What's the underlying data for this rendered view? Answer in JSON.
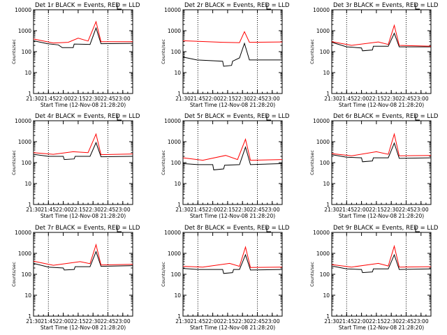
{
  "chart_data": [
    {
      "type": "line",
      "title": "Det 1r BLACK = Events, RED = LLD",
      "xlabel": "Start Time (12-Nov-08 21:28:20)",
      "ylabel": "Counts/sec",
      "yscale": "log",
      "ylim": [
        1,
        10000
      ],
      "xlim": [
        "21:30",
        "23:10"
      ],
      "x_ticks": [
        "21:30",
        "21:45",
        "22:00",
        "22:15",
        "22:30",
        "22:45",
        "23:00"
      ],
      "y_ticks": [
        "1",
        "10",
        "100",
        "1000",
        "10000"
      ],
      "vlines": [
        "21:45",
        "22:45"
      ],
      "series": [
        {
          "name": "Events",
          "color": "#000000",
          "values": [
            {
              "t": "21:30",
              "v": 330
            },
            {
              "t": "21:44",
              "v": 240
            },
            {
              "t": "21:55",
              "v": 210
            },
            {
              "t": "21:59",
              "v": 155
            },
            {
              "t": "22:10",
              "v": 155
            },
            {
              "t": "22:11",
              "v": 230
            },
            {
              "t": "22:27",
              "v": 220
            },
            {
              "t": "22:33",
              "v": 1350
            },
            {
              "t": "22:38",
              "v": 240
            },
            {
              "t": "23:10",
              "v": 250
            }
          ]
        },
        {
          "name": "LLD",
          "color": "#ff0000",
          "values": [
            {
              "t": "21:30",
              "v": 400
            },
            {
              "t": "21:50",
              "v": 260
            },
            {
              "t": "22:05",
              "v": 280
            },
            {
              "t": "22:15",
              "v": 440
            },
            {
              "t": "22:25",
              "v": 320
            },
            {
              "t": "22:33",
              "v": 2700
            },
            {
              "t": "22:38",
              "v": 300
            },
            {
              "t": "23:10",
              "v": 300
            }
          ]
        }
      ]
    },
    {
      "type": "line",
      "title": "Det 2r BLACK = Events, RED = LLD",
      "xlabel": "Start Time (12-Nov-08 21:28:20)",
      "ylabel": "Counts/sec",
      "yscale": "log",
      "ylim": [
        1,
        10000
      ],
      "xlim": [
        "21:30",
        "23:10"
      ],
      "x_ticks": [
        "21:30",
        "21:45",
        "22:00",
        "22:15",
        "22:30",
        "22:45",
        "23:00"
      ],
      "y_ticks": [
        "1",
        "10",
        "100",
        "1000",
        "10000"
      ],
      "vlines": [
        "21:45",
        "22:45"
      ],
      "series": [
        {
          "name": "Events",
          "color": "#000000",
          "values": [
            {
              "t": "21:30",
              "v": 55
            },
            {
              "t": "21:44",
              "v": 40
            },
            {
              "t": "22:10",
              "v": 35
            },
            {
              "t": "22:11",
              "v": 20
            },
            {
              "t": "22:19",
              "v": 22
            },
            {
              "t": "22:20",
              "v": 35
            },
            {
              "t": "22:27",
              "v": 50
            },
            {
              "t": "22:32",
              "v": 250
            },
            {
              "t": "22:37",
              "v": 40
            },
            {
              "t": "23:10",
              "v": 40
            }
          ]
        },
        {
          "name": "LLD",
          "color": "#ff0000",
          "values": [
            {
              "t": "21:30",
              "v": 330
            },
            {
              "t": "22:10",
              "v": 280
            },
            {
              "t": "22:27",
              "v": 270
            },
            {
              "t": "22:32",
              "v": 900
            },
            {
              "t": "22:37",
              "v": 280
            },
            {
              "t": "23:10",
              "v": 290
            }
          ]
        }
      ]
    },
    {
      "type": "line",
      "title": "Det 3r BLACK = Events, RED = LLD",
      "xlabel": "Start Time (12-Nov-08 21:28:20)",
      "ylabel": "Counts/sec",
      "yscale": "log",
      "ylim": [
        1,
        10000
      ],
      "xlim": [
        "21:30",
        "23:10"
      ],
      "x_ticks": [
        "21:30",
        "21:45",
        "22:00",
        "22:15",
        "22:30",
        "22:45",
        "23:00"
      ],
      "y_ticks": [
        "1",
        "10",
        "100",
        "1000",
        "10000"
      ],
      "vlines": [
        "21:45",
        "22:45"
      ],
      "series": [
        {
          "name": "Events",
          "color": "#000000",
          "values": [
            {
              "t": "21:30",
              "v": 280
            },
            {
              "t": "21:45",
              "v": 170
            },
            {
              "t": "22:00",
              "v": 150
            },
            {
              "t": "22:01",
              "v": 110
            },
            {
              "t": "22:11",
              "v": 120
            },
            {
              "t": "22:12",
              "v": 180
            },
            {
              "t": "22:27",
              "v": 180
            },
            {
              "t": "22:33",
              "v": 750
            },
            {
              "t": "22:38",
              "v": 170
            },
            {
              "t": "23:10",
              "v": 170
            }
          ]
        },
        {
          "name": "LLD",
          "color": "#ff0000",
          "values": [
            {
              "t": "21:30",
              "v": 300
            },
            {
              "t": "21:50",
              "v": 200
            },
            {
              "t": "22:17",
              "v": 290
            },
            {
              "t": "22:27",
              "v": 220
            },
            {
              "t": "22:33",
              "v": 1800
            },
            {
              "t": "22:38",
              "v": 200
            },
            {
              "t": "23:10",
              "v": 180
            }
          ]
        }
      ]
    },
    {
      "type": "line",
      "title": "Det 4r BLACK = Events, RED = LLD",
      "xlabel": "Start Time (12-Nov-08 21:28:20)",
      "ylabel": "Counts/sec",
      "yscale": "log",
      "ylim": [
        1,
        10000
      ],
      "xlim": [
        "21:30",
        "23:10"
      ],
      "x_ticks": [
        "21:30",
        "21:45",
        "22:00",
        "22:15",
        "22:30",
        "22:45",
        "23:00"
      ],
      "y_ticks": [
        "1",
        "10",
        "100",
        "1000",
        "10000"
      ],
      "vlines": [
        "21:45",
        "22:45"
      ],
      "series": [
        {
          "name": "Events",
          "color": "#000000",
          "values": [
            {
              "t": "21:30",
              "v": 250
            },
            {
              "t": "21:45",
              "v": 200
            },
            {
              "t": "22:00",
              "v": 200
            },
            {
              "t": "22:01",
              "v": 140
            },
            {
              "t": "22:11",
              "v": 150
            },
            {
              "t": "22:12",
              "v": 200
            },
            {
              "t": "22:27",
              "v": 200
            },
            {
              "t": "22:33",
              "v": 900
            },
            {
              "t": "22:38",
              "v": 190
            },
            {
              "t": "23:10",
              "v": 200
            }
          ]
        },
        {
          "name": "LLD",
          "color": "#ff0000",
          "values": [
            {
              "t": "21:30",
              "v": 300
            },
            {
              "t": "21:50",
              "v": 250
            },
            {
              "t": "22:10",
              "v": 330
            },
            {
              "t": "22:25",
              "v": 300
            },
            {
              "t": "22:33",
              "v": 2300
            },
            {
              "t": "22:38",
              "v": 240
            },
            {
              "t": "23:10",
              "v": 260
            }
          ]
        }
      ]
    },
    {
      "type": "line",
      "title": "Det 5r BLACK = Events, RED = LLD",
      "xlabel": "Start Time (12-Nov-08 21:28:20)",
      "ylabel": "Counts/sec",
      "yscale": "log",
      "ylim": [
        1,
        10000
      ],
      "xlim": [
        "21:30",
        "23:10"
      ],
      "x_ticks": [
        "21:30",
        "21:45",
        "22:00",
        "22:15",
        "22:30",
        "22:45",
        "23:00"
      ],
      "y_ticks": [
        "1",
        "10",
        "100",
        "1000",
        "10000"
      ],
      "vlines": [
        "21:45",
        "22:45"
      ],
      "series": [
        {
          "name": "Events",
          "color": "#000000",
          "values": [
            {
              "t": "21:30",
              "v": 90
            },
            {
              "t": "21:45",
              "v": 80
            },
            {
              "t": "22:00",
              "v": 80
            },
            {
              "t": "22:01",
              "v": 45
            },
            {
              "t": "22:11",
              "v": 50
            },
            {
              "t": "22:12",
              "v": 75
            },
            {
              "t": "22:27",
              "v": 80
            },
            {
              "t": "22:33",
              "v": 550
            },
            {
              "t": "22:38",
              "v": 80
            },
            {
              "t": "23:10",
              "v": 90
            }
          ]
        },
        {
          "name": "LLD",
          "color": "#ff0000",
          "values": [
            {
              "t": "21:30",
              "v": 170
            },
            {
              "t": "21:50",
              "v": 130
            },
            {
              "t": "22:13",
              "v": 220
            },
            {
              "t": "22:25",
              "v": 140
            },
            {
              "t": "22:33",
              "v": 1300
            },
            {
              "t": "22:38",
              "v": 130
            },
            {
              "t": "23:10",
              "v": 140
            }
          ]
        }
      ]
    },
    {
      "type": "line",
      "title": "Det 6r BLACK = Events, RED = LLD",
      "xlabel": "Start Time (12-Nov-08 21:28:20)",
      "ylabel": "Counts/sec",
      "yscale": "log",
      "ylim": [
        1,
        10000
      ],
      "xlim": [
        "21:30",
        "23:10"
      ],
      "x_ticks": [
        "21:30",
        "21:45",
        "22:00",
        "22:15",
        "22:30",
        "22:45",
        "23:00"
      ],
      "y_ticks": [
        "1",
        "10",
        "100",
        "1000",
        "10000"
      ],
      "vlines": [
        "21:45",
        "22:45"
      ],
      "series": [
        {
          "name": "Events",
          "color": "#000000",
          "values": [
            {
              "t": "21:30",
              "v": 240
            },
            {
              "t": "21:45",
              "v": 180
            },
            {
              "t": "22:00",
              "v": 170
            },
            {
              "t": "22:01",
              "v": 110
            },
            {
              "t": "22:11",
              "v": 120
            },
            {
              "t": "22:12",
              "v": 170
            },
            {
              "t": "22:27",
              "v": 170
            },
            {
              "t": "22:33",
              "v": 850
            },
            {
              "t": "22:38",
              "v": 160
            },
            {
              "t": "23:10",
              "v": 170
            }
          ]
        },
        {
          "name": "LLD",
          "color": "#ff0000",
          "values": [
            {
              "t": "21:30",
              "v": 270
            },
            {
              "t": "21:50",
              "v": 210
            },
            {
              "t": "22:15",
              "v": 330
            },
            {
              "t": "22:27",
              "v": 250
            },
            {
              "t": "22:33",
              "v": 2300
            },
            {
              "t": "22:38",
              "v": 210
            },
            {
              "t": "23:10",
              "v": 220
            }
          ]
        }
      ]
    },
    {
      "type": "line",
      "title": "Det 7r BLACK = Events, RED = LLD",
      "xlabel": "Start Time (12-Nov-08 21:28:20)",
      "ylabel": "Counts/sec",
      "yscale": "log",
      "ylim": [
        1,
        10000
      ],
      "xlim": [
        "21:30",
        "23:10"
      ],
      "x_ticks": [
        "21:30",
        "21:45",
        "22:00",
        "22:15",
        "22:30",
        "22:45",
        "23:00"
      ],
      "y_ticks": [
        "1",
        "10",
        "100",
        "1000",
        "10000"
      ],
      "vlines": [
        "21:45",
        "22:45"
      ],
      "series": [
        {
          "name": "Events",
          "color": "#000000",
          "values": [
            {
              "t": "21:30",
              "v": 330
            },
            {
              "t": "21:45",
              "v": 220
            },
            {
              "t": "22:00",
              "v": 200
            },
            {
              "t": "22:01",
              "v": 160
            },
            {
              "t": "22:11",
              "v": 170
            },
            {
              "t": "22:12",
              "v": 230
            },
            {
              "t": "22:27",
              "v": 230
            },
            {
              "t": "22:33",
              "v": 1200
            },
            {
              "t": "22:38",
              "v": 240
            },
            {
              "t": "23:10",
              "v": 260
            }
          ]
        },
        {
          "name": "LLD",
          "color": "#ff0000",
          "values": [
            {
              "t": "21:30",
              "v": 420
            },
            {
              "t": "21:50",
              "v": 270
            },
            {
              "t": "22:17",
              "v": 400
            },
            {
              "t": "22:27",
              "v": 320
            },
            {
              "t": "22:33",
              "v": 2600
            },
            {
              "t": "22:38",
              "v": 280
            },
            {
              "t": "23:10",
              "v": 300
            }
          ]
        }
      ]
    },
    {
      "type": "line",
      "title": "Det 8r BLACK = Events, RED = LLD",
      "xlabel": "Start Time (12-Nov-08 21:28:20)",
      "ylabel": "Counts/sec",
      "yscale": "log",
      "ylim": [
        1,
        10000
      ],
      "xlim": [
        "21:30",
        "23:10"
      ],
      "x_ticks": [
        "21:30",
        "21:45",
        "22:00",
        "22:15",
        "22:30",
        "22:45",
        "23:00"
      ],
      "y_ticks": [
        "1",
        "10",
        "100",
        "1000",
        "10000"
      ],
      "vlines": [
        "21:45",
        "22:45"
      ],
      "series": [
        {
          "name": "Events",
          "color": "#000000",
          "values": [
            {
              "t": "21:30",
              "v": 190
            },
            {
              "t": "21:45",
              "v": 170
            },
            {
              "t": "22:10",
              "v": 170
            },
            {
              "t": "22:11",
              "v": 110
            },
            {
              "t": "22:20",
              "v": 120
            },
            {
              "t": "22:21",
              "v": 170
            },
            {
              "t": "22:27",
              "v": 170
            },
            {
              "t": "22:33",
              "v": 850
            },
            {
              "t": "22:38",
              "v": 160
            },
            {
              "t": "23:10",
              "v": 170
            }
          ]
        },
        {
          "name": "LLD",
          "color": "#ff0000",
          "values": [
            {
              "t": "21:30",
              "v": 240
            },
            {
              "t": "21:50",
              "v": 220
            },
            {
              "t": "22:17",
              "v": 330
            },
            {
              "t": "22:27",
              "v": 240
            },
            {
              "t": "22:33",
              "v": 2000
            },
            {
              "t": "22:38",
              "v": 210
            },
            {
              "t": "23:10",
              "v": 220
            }
          ]
        }
      ]
    },
    {
      "type": "line",
      "title": "Det 9r BLACK = Events, RED = LLD",
      "xlabel": "Start Time (12-Nov-08 21:28:20)",
      "ylabel": "Counts/sec",
      "yscale": "log",
      "ylim": [
        1,
        10000
      ],
      "xlim": [
        "21:30",
        "23:10"
      ],
      "x_ticks": [
        "21:30",
        "21:45",
        "22:00",
        "22:15",
        "22:30",
        "22:45",
        "23:00"
      ],
      "y_ticks": [
        "1",
        "10",
        "100",
        "1000",
        "10000"
      ],
      "vlines": [
        "21:45",
        "22:45"
      ],
      "series": [
        {
          "name": "Events",
          "color": "#000000",
          "values": [
            {
              "t": "21:30",
              "v": 250
            },
            {
              "t": "21:45",
              "v": 180
            },
            {
              "t": "22:00",
              "v": 170
            },
            {
              "t": "22:01",
              "v": 120
            },
            {
              "t": "22:11",
              "v": 130
            },
            {
              "t": "22:12",
              "v": 180
            },
            {
              "t": "22:27",
              "v": 180
            },
            {
              "t": "22:33",
              "v": 850
            },
            {
              "t": "22:38",
              "v": 170
            },
            {
              "t": "23:10",
              "v": 180
            }
          ]
        },
        {
          "name": "LLD",
          "color": "#ff0000",
          "values": [
            {
              "t": "21:30",
              "v": 290
            },
            {
              "t": "21:50",
              "v": 220
            },
            {
              "t": "22:17",
              "v": 330
            },
            {
              "t": "22:27",
              "v": 250
            },
            {
              "t": "22:33",
              "v": 2200
            },
            {
              "t": "22:38",
              "v": 220
            },
            {
              "t": "23:10",
              "v": 230
            }
          ]
        }
      ]
    }
  ]
}
